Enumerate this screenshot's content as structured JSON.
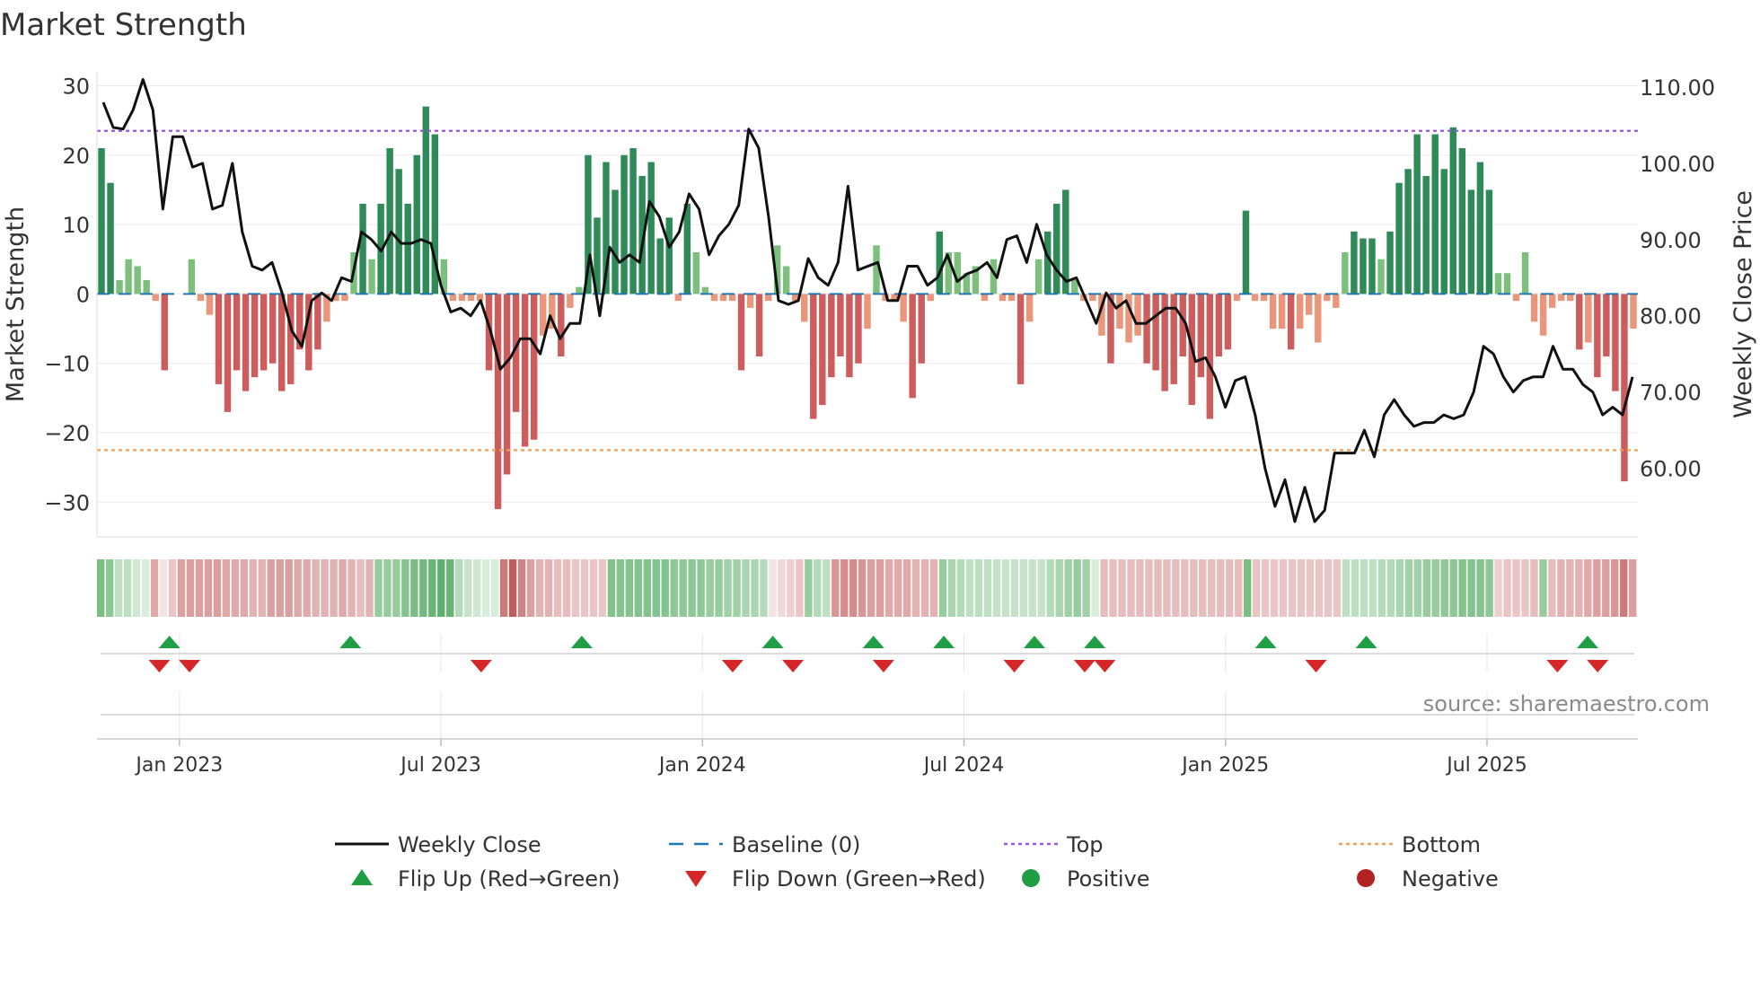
{
  "chart_data": {
    "type": "bar",
    "title": "Market Strength",
    "ylabel": "Market Strength",
    "y2label": "Weekly Close Price",
    "ylim": [
      -35,
      32
    ],
    "y2lim": [
      51,
      112
    ],
    "yticks": [
      30,
      20,
      10,
      0,
      -10,
      -20,
      -30
    ],
    "ytick_labels": [
      "30",
      "20",
      "10",
      "0",
      "−10",
      "−20",
      "−30"
    ],
    "y2ticks": [
      110,
      100,
      90,
      80,
      70,
      60
    ],
    "y2tick_labels": [
      "110.00",
      "100.00",
      "90.00",
      "80.00",
      "70.00",
      "60.00"
    ],
    "x_range_weeks": [
      -10.2,
      143
    ],
    "xticks": [
      {
        "label": "Jan 2023",
        "week": -2
      },
      {
        "label": "Jul 2023",
        "week": 24
      },
      {
        "label": "Jan 2024",
        "week": 50
      },
      {
        "label": "Jul 2024",
        "week": 76
      },
      {
        "label": "Jan 2025",
        "week": 102
      },
      {
        "label": "Jul 2025",
        "week": 128
      }
    ],
    "start_date": "2022-11-28",
    "frequency": "weekly",
    "top_line": 23.5,
    "bottom_line": -22.5,
    "strength": [
      21,
      16,
      2,
      5,
      4,
      2,
      -1,
      -11,
      0,
      0,
      5,
      -1,
      -3,
      -13,
      -17,
      -11,
      -14,
      -12,
      -11,
      -10,
      -14,
      -13,
      -8,
      -11,
      -8,
      -4,
      -1,
      -1,
      6,
      13,
      5,
      13,
      21,
      18,
      13,
      20,
      27,
      23,
      5,
      -1,
      -1,
      -1,
      -1,
      -11,
      -31,
      -26,
      -17,
      -22,
      -21,
      -6,
      -5,
      -9,
      -2,
      1,
      20,
      11,
      19,
      15,
      20,
      21,
      17,
      19,
      8,
      11,
      -1,
      13,
      6,
      1,
      -1,
      -1,
      -1,
      -11,
      -2,
      -9,
      -1,
      7,
      4,
      -1,
      -4,
      -18,
      -16,
      -12,
      -9,
      -12,
      -10,
      -5,
      7,
      -1,
      -1,
      -4,
      -15,
      -10,
      -1,
      9,
      6,
      6,
      3,
      4,
      -1,
      5,
      -1,
      -1,
      -13,
      -4,
      5,
      9,
      13,
      15,
      2,
      -1,
      -1,
      -6,
      -10,
      -5,
      -7,
      -6,
      -10,
      -11,
      -14,
      -13,
      -9,
      -16,
      -12,
      -18,
      -9,
      -8,
      -1,
      12,
      -1,
      -1,
      -5,
      -5,
      -8,
      -5,
      -3,
      -7,
      -1,
      -2,
      6,
      9,
      8,
      8,
      5,
      9,
      16,
      18,
      23,
      17,
      23,
      18,
      24,
      21,
      15,
      19,
      15,
      3,
      3,
      -1,
      6,
      -4,
      -6,
      -2,
      -1,
      -1,
      -8,
      -7,
      -12,
      -9,
      -14,
      -27,
      -5
    ],
    "close": [
      108,
      104.7,
      104.5,
      107,
      111,
      107,
      94,
      103.5,
      103.5,
      99.5,
      100,
      94,
      94.5,
      100,
      91,
      86.5,
      86,
      87,
      83,
      78,
      76,
      82,
      83,
      82,
      85,
      84.5,
      91,
      90,
      88.5,
      91,
      89.5,
      89.5,
      90,
      89.5,
      84,
      80.5,
      81,
      80,
      82,
      78,
      73,
      74.5,
      77,
      77,
      75,
      80,
      77,
      79,
      79,
      88,
      80,
      89,
      87,
      88,
      87,
      95,
      93,
      89,
      91,
      96,
      94,
      88,
      90.5,
      92,
      94.5,
      104.5,
      102,
      93,
      82,
      81.5,
      82,
      87.5,
      85,
      84,
      87,
      97,
      86,
      86.5,
      87,
      82,
      82,
      86.5,
      86.5,
      84,
      85,
      88,
      84.5,
      85.5,
      86,
      87,
      85,
      90,
      90.5,
      87,
      92,
      88,
      86,
      84.5,
      85,
      82,
      79,
      83,
      81,
      82,
      79,
      79,
      80,
      81,
      81,
      79,
      74,
      74.5,
      72,
      68,
      71.5,
      72,
      67,
      60,
      55,
      58.5,
      53,
      57.5,
      53,
      54.5,
      62,
      62,
      62,
      65,
      61.5,
      67,
      69,
      67,
      65.5,
      66,
      66,
      67,
      66.5,
      67,
      70,
      76,
      75,
      72,
      70,
      71.5,
      72,
      72,
      76,
      73,
      73,
      71,
      70,
      67,
      68,
      67,
      72
    ],
    "heat": [
      0.7,
      0.6,
      0.35,
      0.35,
      0.25,
      0.2,
      -0.45,
      -0.15,
      -0.3,
      -0.5,
      -0.5,
      -0.5,
      -0.5,
      -0.5,
      -0.45,
      -0.45,
      -0.45,
      -0.4,
      -0.4,
      -0.5,
      -0.5,
      -0.5,
      -0.45,
      -0.45,
      -0.4,
      -0.4,
      -0.4,
      -0.45,
      -0.4,
      -0.35,
      -0.4,
      0.55,
      0.55,
      0.55,
      0.65,
      0.7,
      0.75,
      0.8,
      0.85,
      0.8,
      0.4,
      0.3,
      0.25,
      0.2,
      0.2,
      -0.7,
      -0.85,
      -0.65,
      -0.5,
      -0.4,
      -0.4,
      -0.35,
      -0.35,
      -0.3,
      -0.3,
      -0.3,
      -0.3,
      0.65,
      0.65,
      0.65,
      0.65,
      0.65,
      0.65,
      0.65,
      0.6,
      0.6,
      0.6,
      0.6,
      0.55,
      0.55,
      0.5,
      0.5,
      0.45,
      0.45,
      0.4,
      -0.15,
      -0.2,
      -0.25,
      -0.3,
      0.55,
      0.4,
      0.35,
      -0.55,
      -0.6,
      -0.6,
      -0.55,
      -0.5,
      -0.5,
      -0.45,
      -0.45,
      -0.45,
      -0.4,
      -0.4,
      -0.4,
      0.55,
      0.45,
      0.4,
      0.35,
      0.35,
      0.35,
      0.3,
      0.3,
      0.3,
      0.3,
      0.3,
      0.3,
      0.4,
      0.45,
      0.5,
      0.55,
      0.5,
      0.2,
      -0.35,
      -0.35,
      -0.35,
      -0.35,
      -0.35,
      -0.35,
      -0.35,
      -0.35,
      -0.35,
      -0.35,
      -0.35,
      -0.35,
      -0.35,
      -0.35,
      -0.35,
      -0.35,
      0.7,
      -0.3,
      -0.3,
      -0.3,
      -0.3,
      -0.3,
      -0.3,
      -0.3,
      -0.3,
      -0.3,
      -0.3,
      0.35,
      0.35,
      0.35,
      0.35,
      0.4,
      0.4,
      0.45,
      0.5,
      0.5,
      0.55,
      0.55,
      0.6,
      0.6,
      0.65,
      0.65,
      0.65,
      0.6,
      -0.25,
      -0.3,
      -0.3,
      -0.3,
      -0.35,
      0.55,
      -0.35,
      -0.4,
      -0.4,
      -0.4,
      -0.45,
      -0.5,
      -0.5,
      -0.55,
      -0.7,
      -0.5
    ],
    "flips_up_weeks": [
      -3,
      15,
      38,
      57,
      67,
      74,
      83,
      89,
      106,
      116,
      138
    ],
    "flips_down_weeks": [
      -4,
      -1,
      28,
      53,
      59,
      68,
      81,
      88,
      90,
      111,
      135,
      139
    ],
    "heat_positive_color": "#41a350",
    "heat_negative_color": "#b84040",
    "colors": {
      "positive_strong": "#2e8b57",
      "positive_weak": "#7dbf7d",
      "negative_strong": "#cd5c5c",
      "negative_weak": "#e9967a",
      "close": "#111111",
      "baseline": "#1f77b4",
      "top": "#9b59d9",
      "bottom": "#f0a050",
      "flip_up": "#1f9e44",
      "flip_down": "#d62728"
    },
    "legend": [
      {
        "label": "Weekly Close",
        "marker": "solid-line",
        "color": "#111111"
      },
      {
        "label": "Baseline (0)",
        "marker": "dashed-line",
        "color": "#1f77b4"
      },
      {
        "label": "Top",
        "marker": "dotted-line",
        "color": "#9b59d9"
      },
      {
        "label": "Bottom",
        "marker": "dotted-line",
        "color": "#f0a050"
      },
      {
        "label": "Flip Up (Red→Green)",
        "marker": "triangle-up",
        "color": "#1f9e44"
      },
      {
        "label": "Flip Down (Green→Red)",
        "marker": "triangle-down",
        "color": "#d62728"
      },
      {
        "label": "Positive",
        "marker": "circle",
        "color": "#1f9e44"
      },
      {
        "label": "Negative",
        "marker": "circle",
        "color": "#b22222"
      }
    ],
    "legend_position": "bottom",
    "grid": true,
    "annotation": "source: sharemaestro.com"
  }
}
